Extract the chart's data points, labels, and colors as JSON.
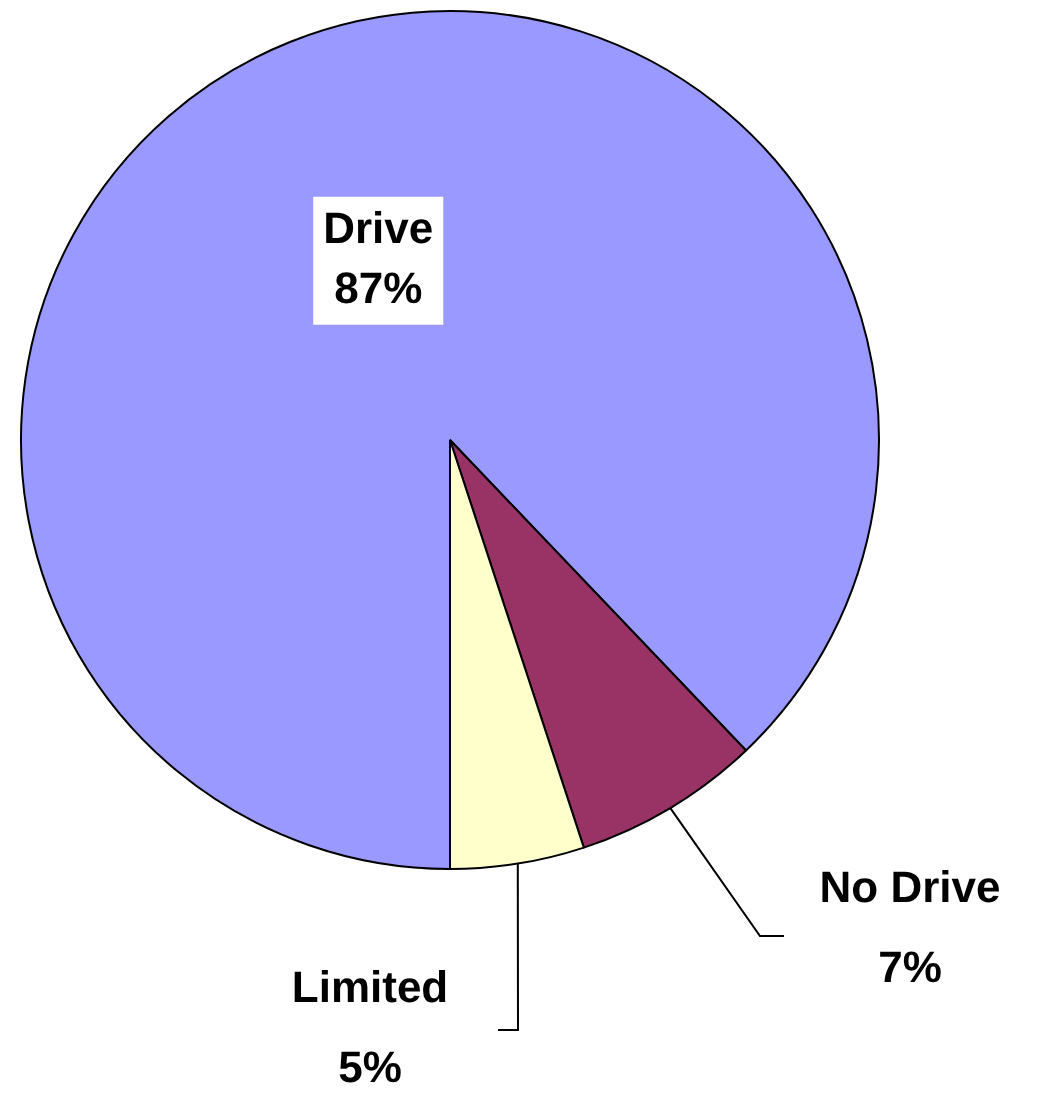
{
  "chart_data": {
    "type": "pie",
    "categories": [
      "Drive",
      "No Drive",
      "Limited"
    ],
    "values": [
      87,
      7,
      5
    ],
    "value_labels": [
      "87%",
      "7%",
      "5%"
    ],
    "colors": [
      "#9999ff",
      "#993366",
      "#ffffcc"
    ],
    "legend": false
  }
}
